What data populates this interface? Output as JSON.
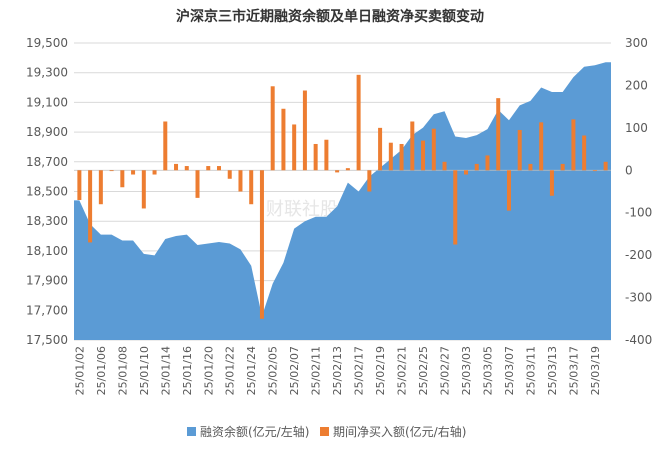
{
  "chart_data": {
    "type": "area+bar",
    "title": "沪深京三市近期融资余额及单日融资净买卖额变动",
    "watermark": "财联社股市频道",
    "colors": {
      "area": "#5b9bd5",
      "bar": "#ed7d31"
    },
    "left_axis": {
      "min": 17500,
      "max": 19500,
      "ticks": [
        "17,500",
        "17,700",
        "17,900",
        "18,100",
        "18,300",
        "18,500",
        "18,700",
        "18,900",
        "19,100",
        "19,300",
        "19,500"
      ]
    },
    "right_axis": {
      "min": -400,
      "max": 300,
      "ticks": [
        "-400",
        "-300",
        "-200",
        "-100",
        "0",
        "100",
        "200",
        "300"
      ]
    },
    "x_tick_labels": [
      "25/01/02",
      "25/01/06",
      "25/01/08",
      "25/01/10",
      "25/01/14",
      "25/01/16",
      "25/01/20",
      "25/01/22",
      "25/01/24",
      "25/02/05",
      "25/02/07",
      "25/02/11",
      "25/02/13",
      "25/02/17",
      "25/02/19",
      "25/02/21",
      "25/02/25",
      "25/02/27",
      "25/03/03",
      "25/03/05",
      "25/03/07",
      "25/03/11",
      "25/03/13",
      "25/03/17",
      "25/03/19"
    ],
    "x_tick_every": 2,
    "grid": true,
    "legend_position": "bottom",
    "series": [
      {
        "name": "融资余额(亿元/左轴)",
        "type": "area",
        "axis": "left",
        "values": [
          18440,
          18280,
          18210,
          18210,
          18170,
          18170,
          18080,
          18070,
          18180,
          18200,
          18210,
          18140,
          18150,
          18160,
          18150,
          18110,
          18000,
          17660,
          17880,
          18020,
          18250,
          18300,
          18330,
          18330,
          18400,
          18560,
          18500,
          18600,
          18660,
          18720,
          18780,
          18880,
          18930,
          19020,
          19040,
          18870,
          18860,
          18880,
          18920,
          19050,
          18980,
          19080,
          19110,
          19200,
          19170,
          19170,
          19270,
          19340,
          19350,
          19370
        ]
      },
      {
        "name": "期间净买入额(亿元/右轴)",
        "type": "bar",
        "axis": "right",
        "values": [
          -70,
          -170,
          -80,
          0,
          -40,
          -10,
          -90,
          -10,
          115,
          15,
          10,
          -65,
          10,
          10,
          -20,
          -50,
          -80,
          -350,
          198,
          145,
          108,
          188,
          62,
          72,
          -5,
          5,
          225,
          -50,
          100,
          65,
          62,
          115,
          70,
          98,
          20,
          -175,
          -10,
          15,
          35,
          170,
          -95,
          95,
          15,
          113,
          -60,
          15,
          120,
          82,
          0,
          20
        ]
      }
    ]
  }
}
